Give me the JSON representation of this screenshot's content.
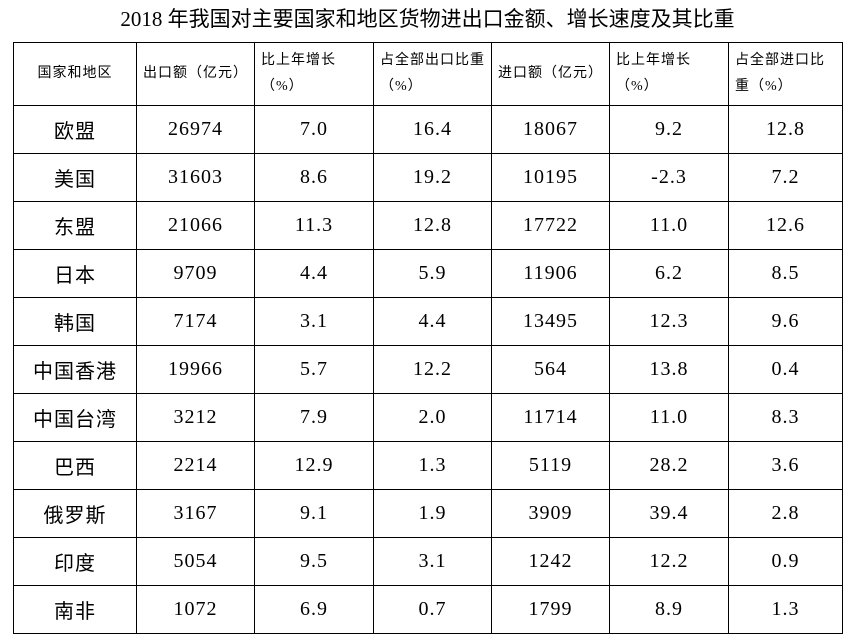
{
  "title": "2018 年我国对主要国家和地区货物进出口金额、增长速度及其比重",
  "table": {
    "header": [
      "国家和地区",
      "出口额（亿元）",
      "比上年增长（%）",
      "占全部出口比重（%）",
      "进口额（亿元）",
      "比上年增长（%）",
      "占全部进口比重（%）"
    ],
    "rows": [
      [
        "欧盟",
        "26974",
        "7.0",
        "16.4",
        "18067",
        "9.2",
        "12.8"
      ],
      [
        "美国",
        "31603",
        "8.6",
        "19.2",
        "10195",
        "-2.3",
        "7.2"
      ],
      [
        "东盟",
        "21066",
        "11.3",
        "12.8",
        "17722",
        "11.0",
        "12.6"
      ],
      [
        "日本",
        "9709",
        "4.4",
        "5.9",
        "11906",
        "6.2",
        "8.5"
      ],
      [
        "韩国",
        "7174",
        "3.1",
        "4.4",
        "13495",
        "12.3",
        "9.6"
      ],
      [
        "中国香港",
        "19966",
        "5.7",
        "12.2",
        "564",
        "13.8",
        "0.4"
      ],
      [
        "中国台湾",
        "3212",
        "7.9",
        "2.0",
        "11714",
        "11.0",
        "8.3"
      ],
      [
        "巴西",
        "2214",
        "12.9",
        "1.3",
        "5119",
        "28.2",
        "3.6"
      ],
      [
        "俄罗斯",
        "3167",
        "9.1",
        "1.9",
        "3909",
        "39.4",
        "2.8"
      ],
      [
        "印度",
        "5054",
        "9.5",
        "3.1",
        "1242",
        "12.2",
        "0.9"
      ],
      [
        "南非",
        "1072",
        "6.9",
        "0.7",
        "1799",
        "8.9",
        "1.3"
      ]
    ]
  }
}
